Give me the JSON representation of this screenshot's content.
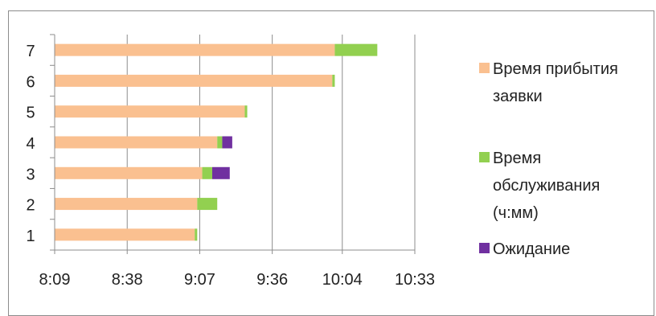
{
  "chart_data": {
    "type": "bar",
    "orientation": "horizontal",
    "stacked": true,
    "categories": [
      "1",
      "2",
      "3",
      "4",
      "5",
      "6",
      "7"
    ],
    "x_ticks": [
      "8:09",
      "8:38",
      "9:07",
      "9:36",
      "10:04",
      "10:33"
    ],
    "xlim": [
      "8:09",
      "10:33"
    ],
    "grid": "vertical",
    "legend_position": "right",
    "series": [
      {
        "name": "Время прибытия заявки",
        "color": "#fac090",
        "values": [
          "9:05",
          "9:06",
          "9:08",
          "9:14",
          "9:25",
          "10:00",
          "10:01"
        ]
      },
      {
        "name": "Время обслуживания (ч:мм)",
        "color": "#92d050",
        "values": [
          "0:01",
          "0:08",
          "0:04",
          "0:02",
          "0:01",
          "0:01",
          "0:17"
        ]
      },
      {
        "name": "Ожидание",
        "color": "#7030a0",
        "values": [
          "0:00",
          "0:00",
          "0:07",
          "0:04",
          "0:00",
          "0:00",
          "0:00"
        ]
      }
    ]
  }
}
